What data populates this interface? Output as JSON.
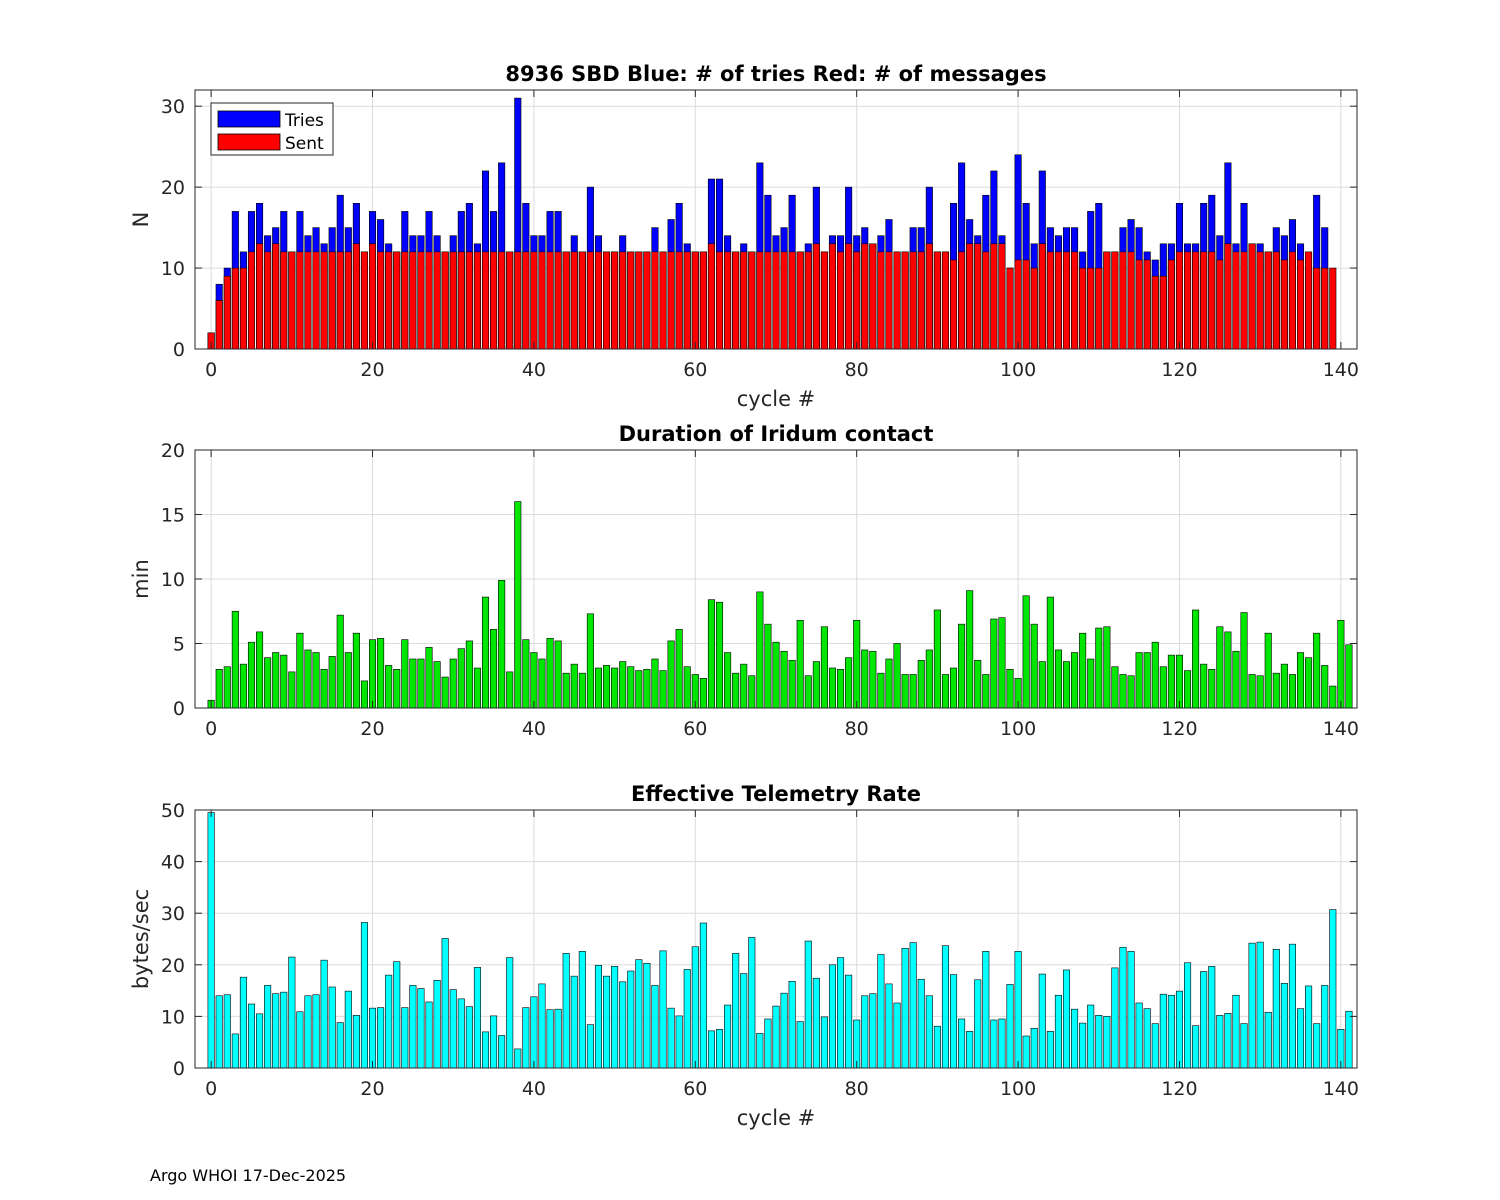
{
  "footer": "Argo WHOI 17-Dec-2025",
  "chart_data": [
    {
      "type": "bar",
      "title": "8936 SBD  Blue: # of tries   Red: # of messages",
      "xlabel": "cycle #",
      "ylabel": "N",
      "xlim": [
        -2,
        142
      ],
      "ylim": [
        0,
        32
      ],
      "xticks": [
        0,
        20,
        40,
        60,
        80,
        100,
        120,
        140
      ],
      "yticks": [
        0,
        10,
        20,
        30
      ],
      "grid": true,
      "legend_position": "top-left",
      "x_start": 0,
      "series": [
        {
          "name": "Tries",
          "color": "#0000ff",
          "values": [
            2,
            8,
            10,
            17,
            12,
            17,
            18,
            14,
            15,
            17,
            12,
            17,
            14,
            15,
            13,
            15,
            19,
            15,
            18,
            12,
            17,
            16,
            13,
            12,
            17,
            14,
            14,
            17,
            14,
            12,
            14,
            17,
            18,
            13,
            22,
            17,
            23,
            12,
            31,
            18,
            14,
            14,
            17,
            17,
            12,
            14,
            12,
            20,
            14,
            12,
            12,
            14,
            12,
            12,
            12,
            15,
            12,
            16,
            18,
            13,
            12,
            12,
            21,
            21,
            14,
            12,
            13,
            12,
            23,
            19,
            14,
            15,
            19,
            12,
            13,
            20,
            12,
            14,
            14,
            20,
            14,
            15,
            13,
            14,
            16,
            12,
            12,
            15,
            15,
            20,
            12,
            12,
            18,
            23,
            16,
            14,
            19,
            22,
            14,
            10,
            24,
            18,
            13,
            22,
            15,
            14,
            15,
            15,
            12,
            17,
            18,
            12,
            12,
            15,
            16,
            15,
            12,
            11,
            13,
            13,
            18,
            13,
            13,
            18,
            19,
            14,
            23,
            13,
            18,
            13,
            13,
            12,
            15,
            14,
            16,
            13,
            10,
            19,
            15
          ]
        },
        {
          "name": "Sent",
          "color": "#ff0000",
          "values": [
            2,
            6,
            9,
            10,
            10,
            12,
            13,
            12,
            13,
            12,
            12,
            12,
            12,
            12,
            12,
            12,
            12,
            12,
            13,
            12,
            13,
            12,
            12,
            12,
            12,
            12,
            12,
            12,
            12,
            12,
            12,
            12,
            12,
            12,
            12,
            12,
            12,
            12,
            12,
            12,
            12,
            12,
            12,
            12,
            12,
            12,
            12,
            12,
            12,
            12,
            12,
            12,
            12,
            12,
            12,
            12,
            12,
            12,
            12,
            12,
            12,
            12,
            13,
            12,
            12,
            12,
            12,
            12,
            12,
            12,
            12,
            12,
            12,
            12,
            12,
            13,
            12,
            13,
            12,
            13,
            12,
            13,
            13,
            12,
            12,
            12,
            12,
            12,
            12,
            13,
            12,
            12,
            11,
            12,
            13,
            13,
            12,
            13,
            13,
            10,
            11,
            11,
            10,
            13,
            12,
            12,
            12,
            12,
            10,
            10,
            10,
            12,
            12,
            12,
            12,
            11,
            11,
            9,
            9,
            11,
            12,
            12,
            12,
            12,
            12,
            11,
            13,
            12,
            12,
            13,
            12,
            12,
            12,
            11,
            12,
            11,
            12,
            10,
            10,
            10
          ]
        }
      ]
    },
    {
      "type": "bar",
      "title": "Duration of Iridum contact",
      "xlabel": "",
      "ylabel": "min",
      "xlim": [
        -2,
        142
      ],
      "ylim": [
        0,
        20
      ],
      "xticks": [
        0,
        20,
        40,
        60,
        80,
        100,
        120,
        140
      ],
      "yticks": [
        0,
        5,
        10,
        15,
        20
      ],
      "grid": true,
      "x_start": 0,
      "series": [
        {
          "name": "Duration",
          "color": "#00e600",
          "values": [
            0.6,
            3.0,
            3.2,
            7.5,
            3.4,
            5.1,
            5.9,
            3.9,
            4.3,
            4.1,
            2.8,
            5.8,
            4.5,
            4.3,
            3.0,
            4.0,
            7.2,
            4.3,
            5.8,
            2.1,
            5.3,
            5.4,
            3.3,
            3.0,
            5.3,
            3.8,
            3.8,
            4.7,
            3.6,
            2.4,
            3.8,
            4.6,
            5.2,
            3.1,
            8.6,
            6.1,
            9.9,
            2.8,
            16.0,
            5.3,
            4.3,
            3.8,
            5.4,
            5.2,
            2.7,
            3.4,
            2.7,
            7.3,
            3.1,
            3.3,
            3.1,
            3.6,
            3.2,
            2.9,
            3.0,
            3.8,
            2.9,
            5.2,
            6.1,
            3.2,
            2.6,
            2.3,
            8.4,
            8.2,
            4.3,
            2.7,
            3.4,
            2.5,
            9.0,
            6.5,
            5.1,
            4.4,
            3.7,
            6.8,
            2.5,
            3.6,
            6.3,
            3.1,
            3.0,
            3.9,
            6.8,
            4.5,
            4.4,
            2.7,
            3.8,
            5.0,
            2.6,
            2.6,
            3.7,
            4.5,
            7.6,
            2.6,
            3.1,
            6.5,
            9.1,
            3.7,
            2.6,
            6.9,
            7.0,
            3.0,
            2.3,
            8.7,
            6.5,
            3.6,
            8.6,
            4.5,
            3.6,
            4.3,
            5.8,
            3.8,
            6.2,
            6.3,
            3.2,
            2.6,
            2.5,
            4.3,
            4.3,
            5.1,
            3.2,
            4.1,
            4.1,
            2.9,
            7.6,
            3.4,
            3.0,
            6.3,
            5.9,
            4.4,
            7.4,
            2.6,
            2.5,
            5.8,
            2.7,
            3.4,
            2.6,
            4.3,
            3.9,
            5.8,
            3.3,
            1.7,
            6.8,
            4.9
          ]
        }
      ]
    },
    {
      "type": "bar",
      "title": "Effective Telemetry Rate",
      "xlabel": "cycle #",
      "ylabel": "bytes/sec",
      "xlim": [
        -2,
        142
      ],
      "ylim": [
        0,
        50
      ],
      "xticks": [
        0,
        20,
        40,
        60,
        80,
        100,
        120,
        140
      ],
      "yticks": [
        0,
        10,
        20,
        30,
        40,
        50
      ],
      "grid": true,
      "x_start": 0,
      "series": [
        {
          "name": "Rate",
          "color": "#00ffff",
          "values": [
            49.5,
            14.0,
            14.2,
            6.6,
            17.6,
            12.4,
            10.5,
            16.0,
            14.4,
            14.7,
            21.5,
            10.9,
            14.0,
            14.2,
            20.9,
            15.7,
            8.8,
            14.9,
            10.2,
            28.2,
            11.6,
            11.7,
            18.0,
            20.6,
            11.7,
            16.0,
            15.4,
            12.8,
            17.0,
            25.1,
            15.2,
            13.4,
            11.9,
            19.5,
            7.0,
            10.1,
            6.3,
            21.4,
            3.7,
            11.7,
            13.8,
            16.3,
            11.3,
            11.4,
            22.2,
            17.8,
            22.6,
            8.4,
            19.9,
            17.8,
            19.7,
            16.7,
            18.8,
            21.0,
            20.3,
            16.0,
            22.7,
            11.6,
            10.1,
            19.1,
            23.5,
            28.1,
            7.2,
            7.5,
            12.2,
            22.2,
            18.3,
            25.3,
            6.7,
            9.5,
            12.0,
            14.5,
            16.8,
            9.0,
            24.6,
            17.4,
            9.9,
            20.0,
            21.4,
            18.0,
            9.3,
            14.0,
            14.4,
            22.0,
            16.3,
            12.6,
            23.2,
            24.3,
            17.2,
            14.0,
            8.1,
            23.7,
            18.1,
            9.5,
            7.1,
            17.1,
            22.6,
            9.3,
            9.5,
            16.2,
            22.6,
            6.2,
            7.7,
            18.2,
            7.1,
            14.1,
            19.0,
            11.4,
            8.7,
            12.2,
            10.2,
            10.0,
            19.4,
            23.4,
            22.6,
            12.6,
            11.5,
            8.6,
            14.3,
            14.1,
            14.9,
            20.4,
            8.2,
            18.7,
            19.7,
            10.2,
            10.6,
            14.1,
            8.6,
            24.2,
            24.4,
            10.8,
            23.0,
            16.4,
            24.0,
            11.5,
            15.9,
            8.6,
            16.0,
            30.7,
            7.5,
            11.0
          ]
        }
      ]
    }
  ]
}
